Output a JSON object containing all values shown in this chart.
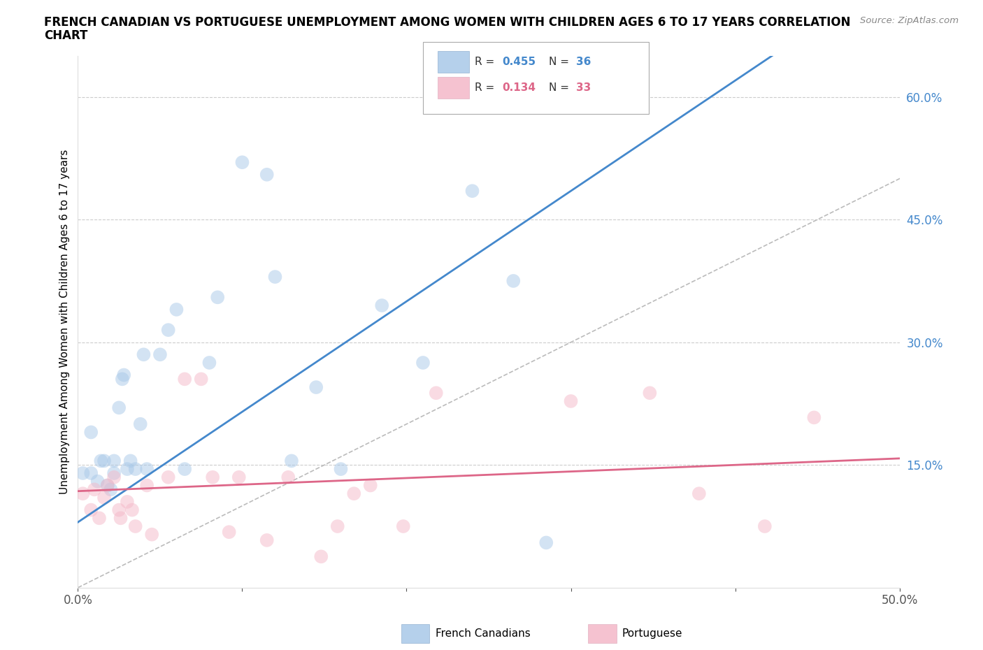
{
  "title_line1": "FRENCH CANADIAN VS PORTUGUESE UNEMPLOYMENT AMONG WOMEN WITH CHILDREN AGES 6 TO 17 YEARS CORRELATION",
  "title_line2": "CHART",
  "source": "Source: ZipAtlas.com",
  "ylabel": "Unemployment Among Women with Children Ages 6 to 17 years",
  "xlim": [
    0.0,
    0.5
  ],
  "ylim": [
    0.0,
    0.65
  ],
  "xticks": [
    0.0,
    0.1,
    0.2,
    0.3,
    0.4,
    0.5
  ],
  "xticklabels": [
    "0.0%",
    "",
    "",
    "",
    "",
    "50.0%"
  ],
  "yticks": [
    0.15,
    0.3,
    0.45,
    0.6
  ],
  "yticklabels": [
    "15.0%",
    "30.0%",
    "45.0%",
    "60.0%"
  ],
  "R_blue": 0.455,
  "N_blue": 36,
  "R_pink": 0.134,
  "N_pink": 33,
  "blue_color": "#a8c8e8",
  "pink_color": "#f4b8c8",
  "line_blue": "#4488cc",
  "line_pink": "#dd6688",
  "tick_label_color": "#4488cc",
  "blue_scatter_x": [
    0.003,
    0.008,
    0.008,
    0.012,
    0.014,
    0.016,
    0.018,
    0.02,
    0.022,
    0.022,
    0.025,
    0.027,
    0.028,
    0.03,
    0.032,
    0.035,
    0.038,
    0.04,
    0.042,
    0.05,
    0.055,
    0.06,
    0.065,
    0.08,
    0.085,
    0.1,
    0.115,
    0.12,
    0.13,
    0.145,
    0.16,
    0.185,
    0.21,
    0.24,
    0.265,
    0.285
  ],
  "blue_scatter_y": [
    0.14,
    0.19,
    0.14,
    0.13,
    0.155,
    0.155,
    0.125,
    0.12,
    0.14,
    0.155,
    0.22,
    0.255,
    0.26,
    0.145,
    0.155,
    0.145,
    0.2,
    0.285,
    0.145,
    0.285,
    0.315,
    0.34,
    0.145,
    0.275,
    0.355,
    0.52,
    0.505,
    0.38,
    0.155,
    0.245,
    0.145,
    0.345,
    0.275,
    0.485,
    0.375,
    0.055
  ],
  "pink_scatter_x": [
    0.003,
    0.008,
    0.01,
    0.013,
    0.016,
    0.018,
    0.022,
    0.025,
    0.026,
    0.03,
    0.033,
    0.035,
    0.042,
    0.045,
    0.055,
    0.065,
    0.075,
    0.082,
    0.092,
    0.098,
    0.115,
    0.128,
    0.148,
    0.158,
    0.168,
    0.178,
    0.198,
    0.218,
    0.3,
    0.348,
    0.378,
    0.418,
    0.448
  ],
  "pink_scatter_y": [
    0.115,
    0.095,
    0.12,
    0.085,
    0.11,
    0.125,
    0.135,
    0.095,
    0.085,
    0.105,
    0.095,
    0.075,
    0.125,
    0.065,
    0.135,
    0.255,
    0.255,
    0.135,
    0.068,
    0.135,
    0.058,
    0.135,
    0.038,
    0.075,
    0.115,
    0.125,
    0.075,
    0.238,
    0.228,
    0.238,
    0.115,
    0.075,
    0.208
  ],
  "marker_size": 200,
  "marker_alpha": 0.5,
  "dashed_line_color": "#bbbbbb",
  "background_color": "#ffffff",
  "grid_color": "#cccccc",
  "blue_line_intercept": 0.08,
  "blue_line_slope": 1.35,
  "pink_line_intercept": 0.118,
  "pink_line_slope": 0.08
}
